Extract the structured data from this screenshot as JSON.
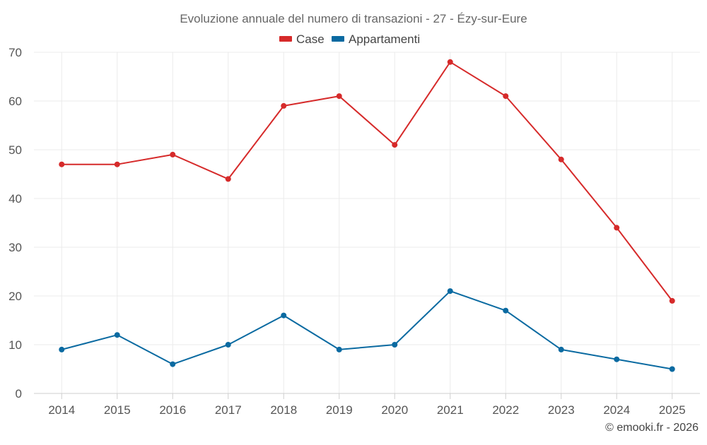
{
  "chart_data": {
    "type": "line",
    "title": "Evoluzione annuale del numero di transazioni - 27 - Ézy-sur-Eure",
    "categories": [
      "2014",
      "2015",
      "2016",
      "2017",
      "2018",
      "2019",
      "2020",
      "2021",
      "2022",
      "2023",
      "2024",
      "2025"
    ],
    "series": [
      {
        "name": "Case",
        "color": "#d62a2a",
        "values": [
          47,
          47,
          49,
          44,
          59,
          61,
          51,
          68,
          61,
          48,
          34,
          19
        ]
      },
      {
        "name": "Appartamenti",
        "color": "#0a6aa1",
        "values": [
          9,
          12,
          6,
          10,
          16,
          9,
          10,
          21,
          17,
          9,
          7,
          5
        ]
      }
    ],
    "ylim": [
      0,
      70
    ],
    "yticks": [
      0,
      10,
      20,
      30,
      40,
      50,
      60,
      70
    ],
    "xlabel": "",
    "ylabel": "",
    "grid": true,
    "legend_position": "top-center"
  },
  "credit": "© emooki.fr - 2026"
}
